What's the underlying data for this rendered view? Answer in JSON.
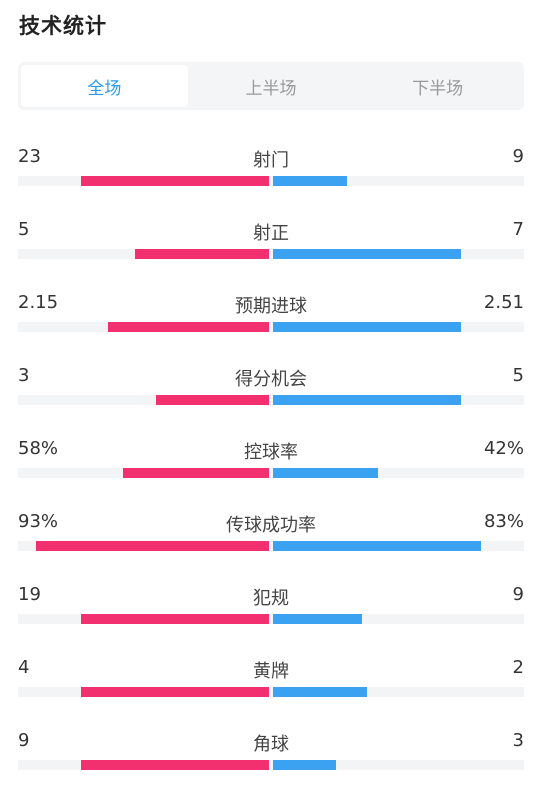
{
  "header": {
    "title": "技术统计"
  },
  "tabs": [
    {
      "label": "全场",
      "active": true
    },
    {
      "label": "上半场",
      "active": false
    },
    {
      "label": "下半场",
      "active": false
    }
  ],
  "colors": {
    "home": "#f2306f",
    "away": "#3ba2f1",
    "accent": "#2a9be8"
  },
  "stats": [
    {
      "name": "射门",
      "home": "23",
      "away": "9",
      "home_val": 23,
      "away_val": 9
    },
    {
      "name": "射正",
      "home": "5",
      "away": "7",
      "home_val": 5,
      "away_val": 7
    },
    {
      "name": "预期进球",
      "home": "2.15",
      "away": "2.51",
      "home_val": 2.15,
      "away_val": 2.51
    },
    {
      "name": "得分机会",
      "home": "3",
      "away": "5",
      "home_val": 3,
      "away_val": 5
    },
    {
      "name": "控球率",
      "home": "58%",
      "away": "42%",
      "home_val": 58,
      "away_val": 42
    },
    {
      "name": "传球成功率",
      "home": "93%",
      "away": "83%",
      "home_val": 93,
      "away_val": 83
    },
    {
      "name": "犯规",
      "home": "19",
      "away": "9",
      "home_val": 19,
      "away_val": 9
    },
    {
      "name": "黄牌",
      "home": "4",
      "away": "2",
      "home_val": 4,
      "away_val": 2
    },
    {
      "name": "角球",
      "home": "9",
      "away": "3",
      "home_val": 9,
      "away_val": 3
    }
  ]
}
